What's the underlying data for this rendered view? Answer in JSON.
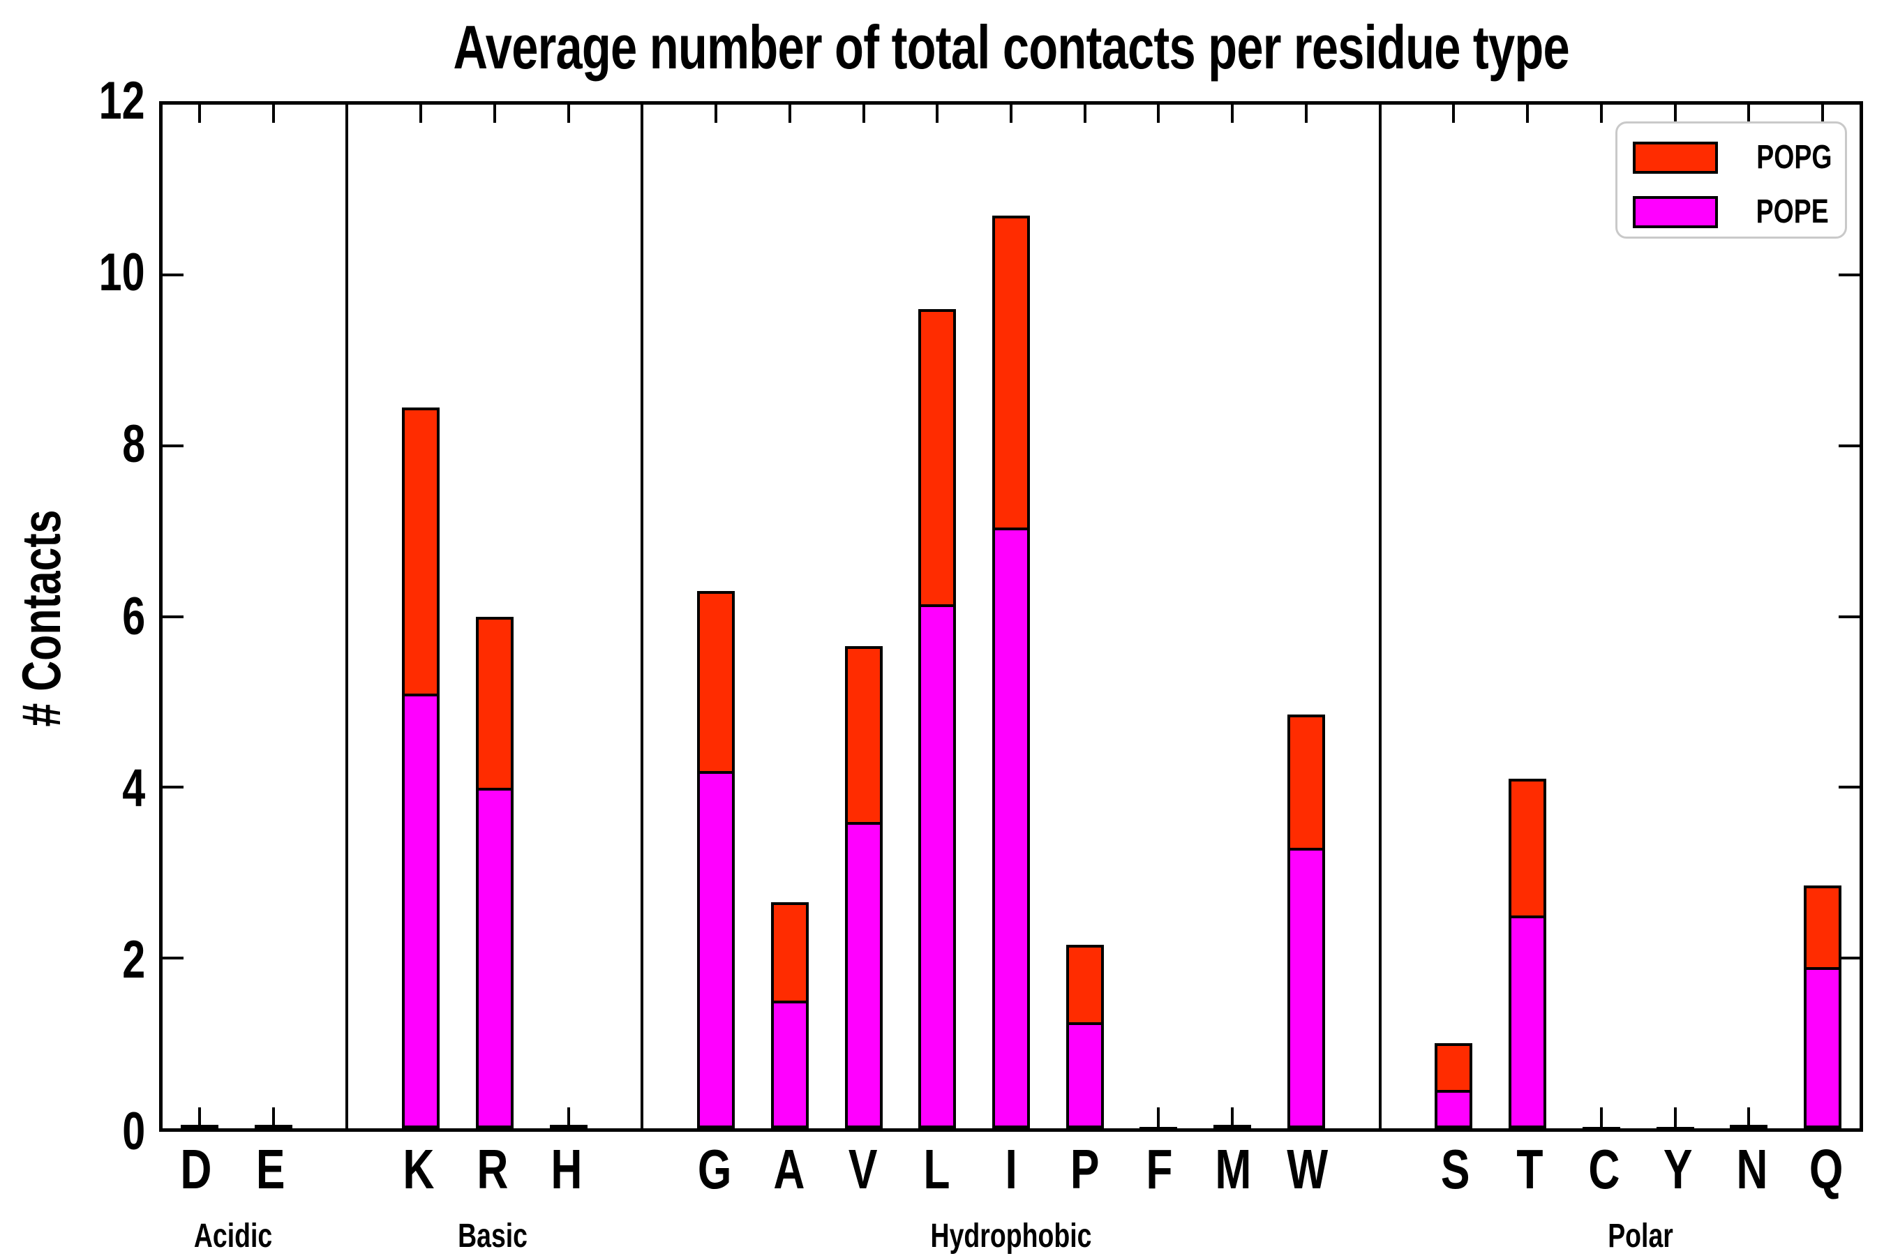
{
  "title": "Average number of total contacts per residue type",
  "ylabel": "# Contacts",
  "legend": {
    "items": [
      {
        "label": "POPG",
        "color": "#ff2c00"
      },
      {
        "label": "POPE",
        "color": "#ff00ff"
      }
    ],
    "position": "upper right"
  },
  "colors": {
    "popg": "#ff2c00",
    "pope": "#ff00ff",
    "axis": "#000000",
    "legend_border": "#c9c9c9",
    "background": "#ffffff"
  },
  "chart_data": {
    "type": "bar",
    "stacked": true,
    "grid": false,
    "legend_position": "upper right",
    "ylabel": "# Contacts",
    "xlabel": "",
    "ylim": [
      0,
      12
    ],
    "yticks": [
      0,
      2,
      4,
      6,
      8,
      10,
      12
    ],
    "groups": [
      {
        "label": "Acidic",
        "categories": [
          "D",
          "E"
        ]
      },
      {
        "label": "Basic",
        "categories": [
          "K",
          "R",
          "H"
        ]
      },
      {
        "label": "Hydrophobic",
        "categories": [
          "G",
          "A",
          "V",
          "L",
          "I",
          "P",
          "F",
          "M",
          "W"
        ]
      },
      {
        "label": "Polar",
        "categories": [
          "S",
          "T",
          "C",
          "Y",
          "N",
          "Q"
        ]
      }
    ],
    "categories": [
      "D",
      "E",
      "K",
      "R",
      "H",
      "G",
      "A",
      "V",
      "L",
      "I",
      "P",
      "F",
      "M",
      "W",
      "S",
      "T",
      "C",
      "Y",
      "N",
      "Q"
    ],
    "series": [
      {
        "name": "POPE",
        "color": "#ff00ff",
        "values": [
          0.02,
          0.02,
          5.1,
          4.0,
          0.02,
          4.2,
          1.5,
          3.6,
          6.15,
          7.05,
          1.25,
          0.01,
          0.02,
          3.3,
          0.45,
          2.5,
          0.01,
          0.01,
          0.02,
          1.9
        ]
      },
      {
        "name": "POPG",
        "color": "#ff2c00",
        "values": [
          0.02,
          0.02,
          3.35,
          2.0,
          0.02,
          2.1,
          1.15,
          2.05,
          3.45,
          3.65,
          0.9,
          0.01,
          0.02,
          1.55,
          0.55,
          1.6,
          0.01,
          0.01,
          0.02,
          0.95
        ]
      }
    ]
  }
}
